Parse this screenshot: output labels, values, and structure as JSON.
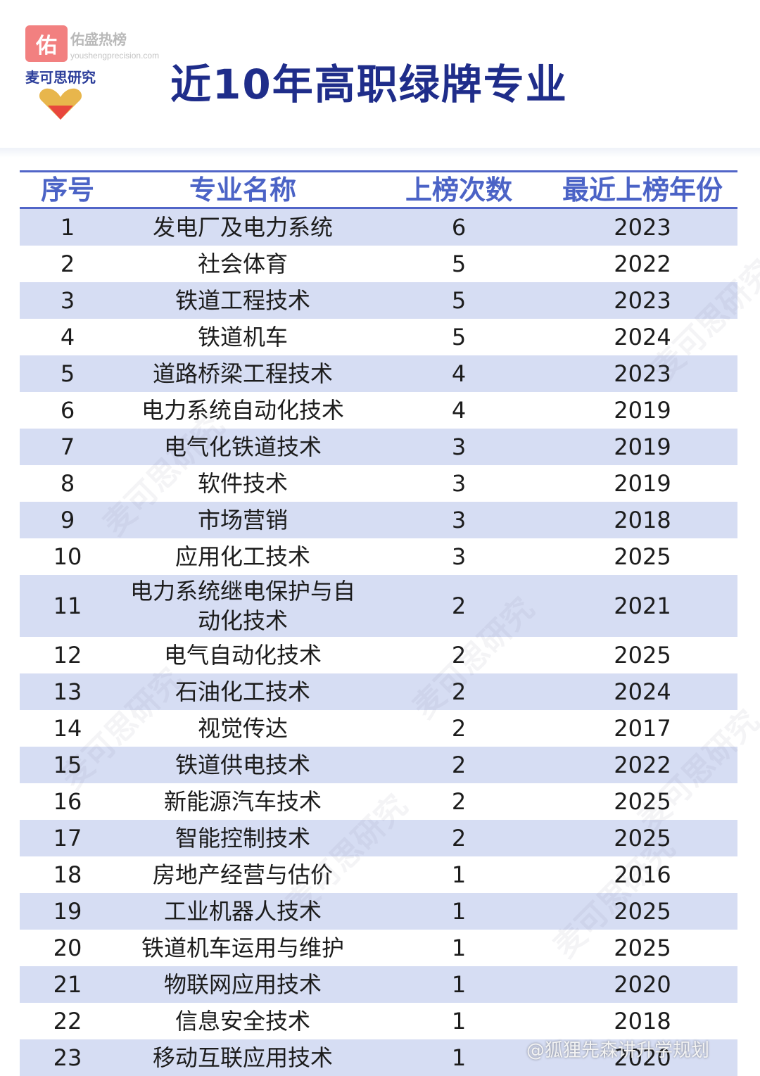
{
  "brand": {
    "badge_char": "佑",
    "top": "佑盛热榜",
    "url": "youshengprecision.com",
    "name": "麦可思研究"
  },
  "title": "近10年高职绿牌专业",
  "columns": [
    "序号",
    "专业名称",
    "上榜次数",
    "最近上榜年份"
  ],
  "rows": [
    {
      "no": "1",
      "name": "发电厂及电力系统",
      "count": "6",
      "year": "2023"
    },
    {
      "no": "2",
      "name": "社会体育",
      "count": "5",
      "year": "2022"
    },
    {
      "no": "3",
      "name": "铁道工程技术",
      "count": "5",
      "year": "2023"
    },
    {
      "no": "4",
      "name": "铁道机车",
      "count": "5",
      "year": "2024"
    },
    {
      "no": "5",
      "name": "道路桥梁工程技术",
      "count": "4",
      "year": "2023"
    },
    {
      "no": "6",
      "name": "电力系统自动化技术",
      "count": "4",
      "year": "2019"
    },
    {
      "no": "7",
      "name": "电气化铁道技术",
      "count": "3",
      "year": "2019"
    },
    {
      "no": "8",
      "name": "软件技术",
      "count": "3",
      "year": "2019"
    },
    {
      "no": "9",
      "name": "市场营销",
      "count": "3",
      "year": "2018"
    },
    {
      "no": "10",
      "name": "应用化工技术",
      "count": "3",
      "year": "2025"
    },
    {
      "no": "11",
      "name": "电力系统继电保护与自动化技术",
      "count": "2",
      "year": "2021"
    },
    {
      "no": "12",
      "name": "电气自动化技术",
      "count": "2",
      "year": "2025"
    },
    {
      "no": "13",
      "name": "石油化工技术",
      "count": "2",
      "year": "2024"
    },
    {
      "no": "14",
      "name": "视觉传达",
      "count": "2",
      "year": "2017"
    },
    {
      "no": "15",
      "name": "铁道供电技术",
      "count": "2",
      "year": "2022"
    },
    {
      "no": "16",
      "name": "新能源汽车技术",
      "count": "2",
      "year": "2025"
    },
    {
      "no": "17",
      "name": "智能控制技术",
      "count": "2",
      "year": "2025"
    },
    {
      "no": "18",
      "name": "房地产经营与估价",
      "count": "1",
      "year": "2016"
    },
    {
      "no": "19",
      "name": "工业机器人技术",
      "count": "1",
      "year": "2025"
    },
    {
      "no": "20",
      "name": "铁道机车运用与维护",
      "count": "1",
      "year": "2025"
    },
    {
      "no": "21",
      "name": "物联网应用技术",
      "count": "1",
      "year": "2020"
    },
    {
      "no": "22",
      "name": "信息安全技术",
      "count": "1",
      "year": "2018"
    },
    {
      "no": "23",
      "name": "移动互联应用技术",
      "count": "1",
      "year": "2020"
    }
  ],
  "watermark": "麦可思研究",
  "footer_watermark": "@狐狸先森讲升学规划",
  "colors": {
    "title": "#1f2d8a",
    "header_text": "#4b63c6",
    "row_shade": "#d6ddf3",
    "rule": "#5165c8"
  }
}
